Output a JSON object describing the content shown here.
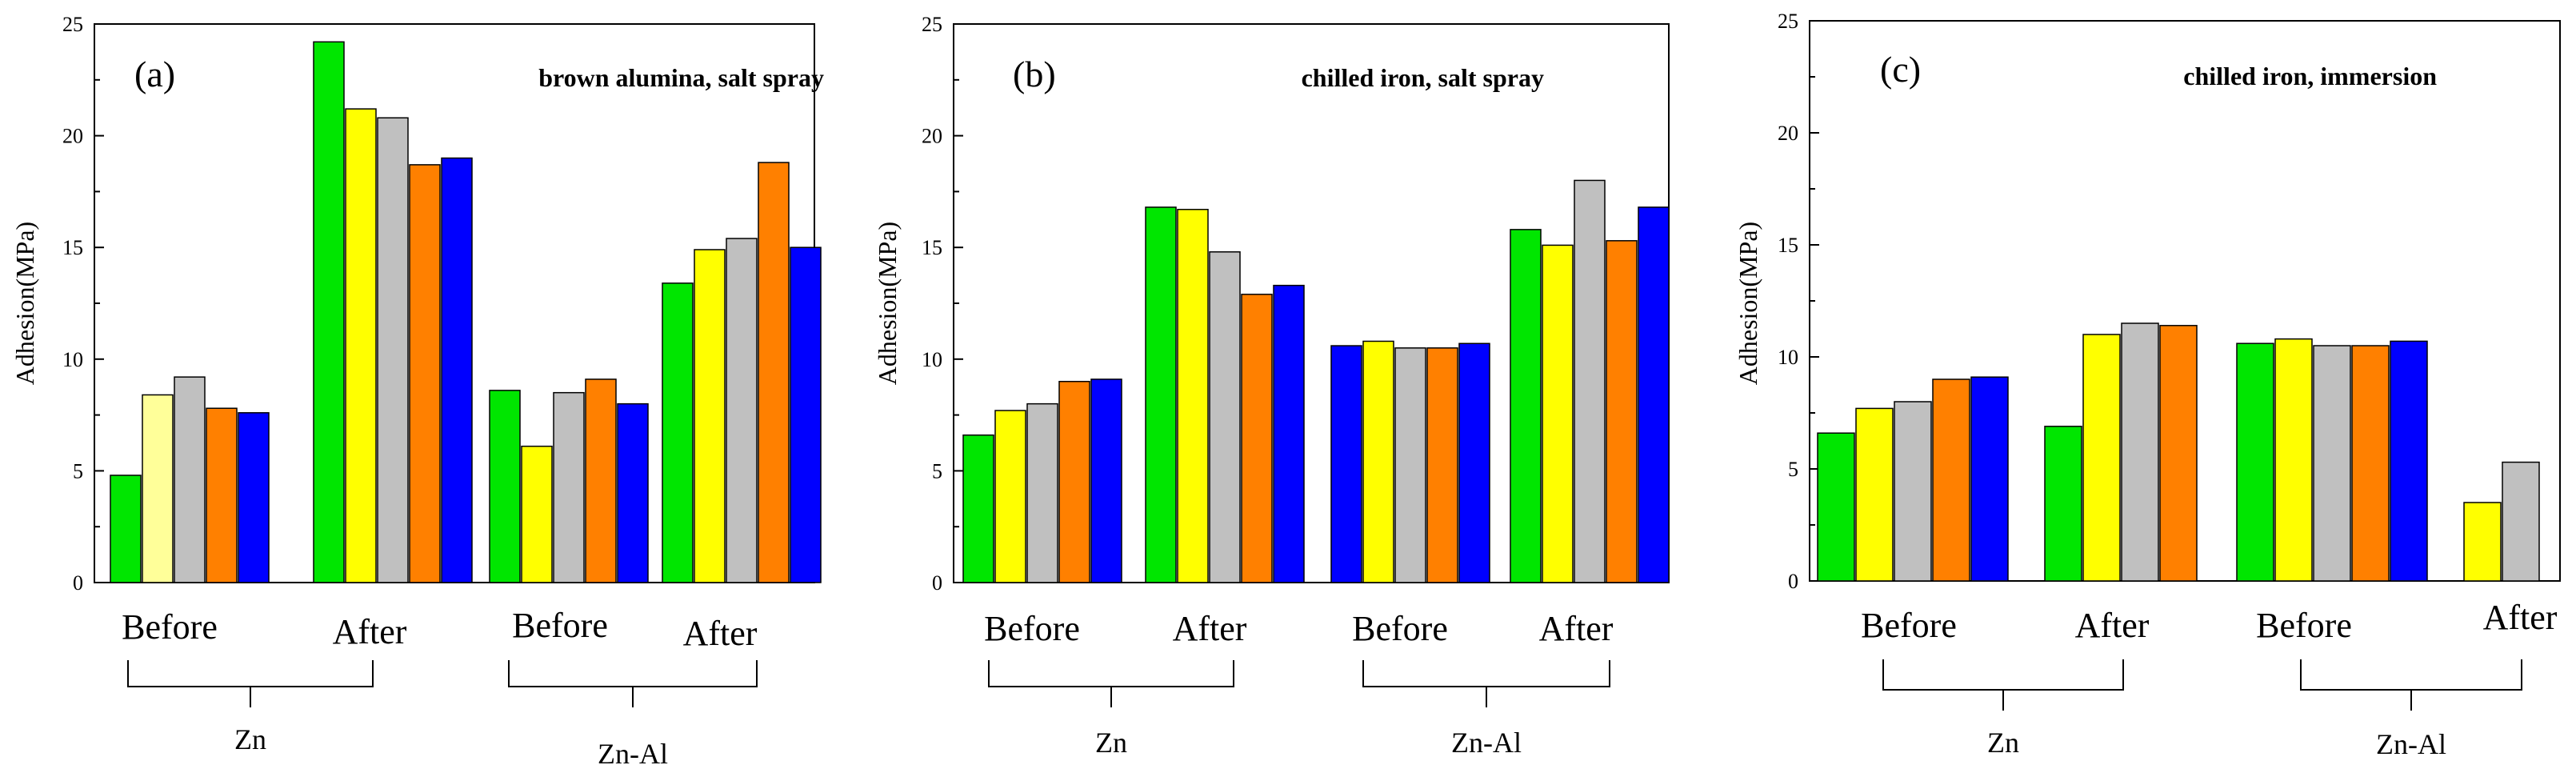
{
  "chart_data": [
    {
      "type": "bar",
      "panel_label": "(a)",
      "title": "brown alumina, salt spray",
      "ylabel": "Adhesion(MPa)",
      "xlabel": "",
      "ylim": [
        0,
        25
      ],
      "yticks": [
        "0",
        "5",
        "10",
        "15",
        "20",
        "25"
      ],
      "groups": [
        {
          "label": "Before",
          "values": [
            4.8,
            8.4,
            9.2,
            7.8,
            7.6
          ],
          "colors": [
            "#00e600",
            "#ffff99",
            "#c0c0c0",
            "#ff8000",
            "#0000ff"
          ]
        },
        {
          "label": "After",
          "values": [
            24.2,
            21.2,
            20.8,
            18.7,
            19.0
          ],
          "colors": [
            "#00e600",
            "#ffff00",
            "#c0c0c0",
            "#ff8000",
            "#0000ff"
          ]
        },
        {
          "label": "Before",
          "values": [
            8.6,
            6.1,
            8.5,
            9.1,
            8.0
          ],
          "colors": [
            "#00e600",
            "#ffff00",
            "#c0c0c0",
            "#ff8000",
            "#0000ff"
          ]
        },
        {
          "label": "After",
          "values": [
            13.4,
            14.9,
            15.4,
            18.8,
            15.0
          ],
          "colors": [
            "#00e600",
            "#ffff00",
            "#c0c0c0",
            "#ff8000",
            "#0000ff"
          ]
        }
      ],
      "brackets": [
        {
          "label": "Zn",
          "groups": [
            0,
            1
          ]
        },
        {
          "label": "Zn-Al",
          "groups": [
            2,
            3
          ]
        }
      ]
    },
    {
      "type": "bar",
      "panel_label": "(b)",
      "title": "chilled iron, salt spray",
      "ylabel": "Adhesion(MPa)",
      "xlabel": "",
      "ylim": [
        0,
        25
      ],
      "yticks": [
        "0",
        "5",
        "10",
        "15",
        "20",
        "25"
      ],
      "groups": [
        {
          "label": "Before",
          "values": [
            6.6,
            7.7,
            8.0,
            9.0,
            9.1
          ],
          "colors": [
            "#00e600",
            "#ffff00",
            "#c0c0c0",
            "#ff8000",
            "#0000ff"
          ]
        },
        {
          "label": "After",
          "values": [
            16.8,
            16.7,
            14.8,
            12.9,
            13.3
          ],
          "colors": [
            "#00e600",
            "#ffff00",
            "#c0c0c0",
            "#ff8000",
            "#0000ff"
          ]
        },
        {
          "label": "Before",
          "values": [
            10.6,
            10.8,
            10.5,
            10.5,
            10.7
          ],
          "colors": [
            "#0000ff",
            "#ffff00",
            "#c0c0c0",
            "#ff8000",
            "#0000ff"
          ]
        },
        {
          "label": "After",
          "values": [
            15.8,
            15.1,
            18.0,
            15.3,
            16.8
          ],
          "colors": [
            "#00e600",
            "#ffff00",
            "#c0c0c0",
            "#ff8000",
            "#0000ff"
          ]
        }
      ],
      "brackets": [
        {
          "label": "Zn",
          "groups": [
            0,
            1
          ]
        },
        {
          "label": "Zn-Al",
          "groups": [
            2,
            3
          ]
        }
      ]
    },
    {
      "type": "bar",
      "panel_label": "(c)",
      "title": "chilled iron, immersion",
      "ylabel": "Adhesion(MPa)",
      "xlabel": "",
      "ylim": [
        0,
        25
      ],
      "yticks": [
        "0",
        "5",
        "10",
        "15",
        "20",
        "25"
      ],
      "groups": [
        {
          "label": "Before",
          "values": [
            6.6,
            7.7,
            8.0,
            9.0,
            9.1
          ],
          "colors": [
            "#00e600",
            "#ffff00",
            "#c0c0c0",
            "#ff8000",
            "#0000ff"
          ]
        },
        {
          "label": "After",
          "values": [
            6.9,
            11.0,
            11.5,
            11.4
          ],
          "colors": [
            "#00e600",
            "#ffff00",
            "#c0c0c0",
            "#ff8000"
          ]
        },
        {
          "label": "Before",
          "values": [
            10.6,
            10.8,
            10.5,
            10.5,
            10.7
          ],
          "colors": [
            "#00e600",
            "#ffff00",
            "#c0c0c0",
            "#ff8000",
            "#0000ff"
          ]
        },
        {
          "label": "After",
          "values": [
            3.5,
            5.3
          ],
          "colors": [
            "#ffff00",
            "#c0c0c0"
          ]
        }
      ],
      "brackets": [
        {
          "label": "Zn",
          "groups": [
            0,
            1
          ]
        },
        {
          "label": "Zn-Al",
          "groups": [
            2,
            3
          ]
        }
      ]
    }
  ]
}
